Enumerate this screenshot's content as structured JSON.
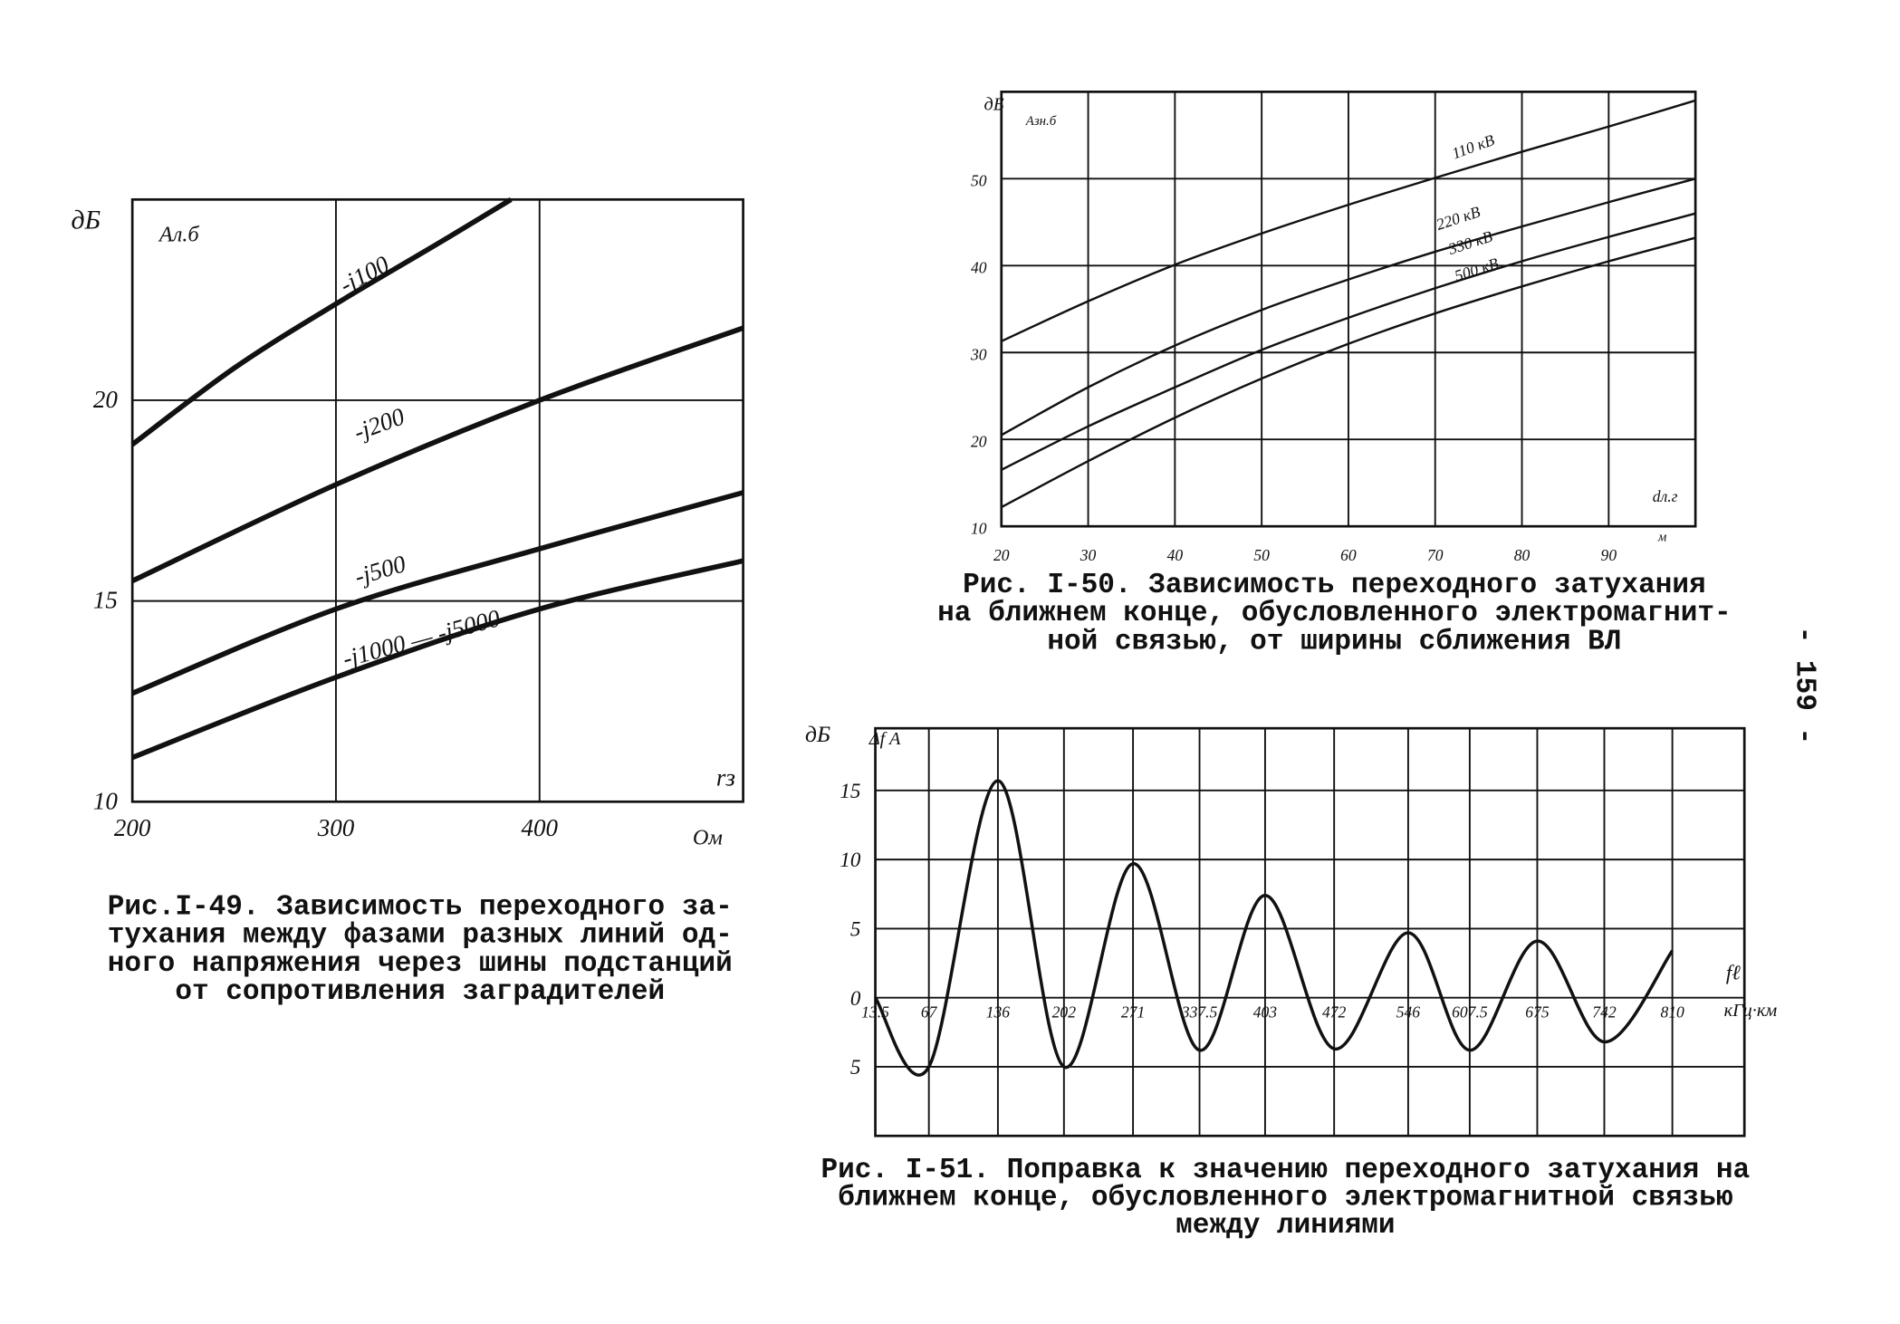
{
  "chart_data": [
    {
      "type": "line",
      "caption": [
        "Рис.I-49. Зависимость переходного за-",
        "тухания между фазами разных линий од-",
        "ного напряжения через шины подстанций",
        "от сопротивления заградителей"
      ],
      "ylabel": "дБ",
      "y_symbol": "Aл.б",
      "xlabel": "rз",
      "x_unit": "Ом",
      "xlim": [
        200,
        500
      ],
      "xticks": [
        200,
        300,
        400
      ],
      "ylim": [
        10,
        25
      ],
      "yticks": [
        10,
        15,
        20
      ],
      "grid": true,
      "series": [
        {
          "name": "-j100",
          "color": "#111",
          "x": [
            200,
            250,
            300,
            350,
            386
          ],
          "values": [
            18.9,
            20.8,
            22.4,
            23.9,
            25
          ]
        },
        {
          "name": "-j200",
          "color": "#111",
          "x": [
            200,
            300,
            400,
            500
          ],
          "values": [
            15.5,
            17.9,
            20.0,
            21.8
          ]
        },
        {
          "name": "-j500",
          "color": "#111",
          "x": [
            200,
            300,
            400,
            500
          ],
          "values": [
            12.7,
            14.8,
            16.3,
            17.7
          ]
        },
        {
          "name": "-j1000 — -j5000",
          "color": "#111",
          "x": [
            200,
            300,
            400,
            500
          ],
          "values": [
            11.1,
            13.1,
            14.8,
            16.0
          ]
        }
      ]
    },
    {
      "type": "line",
      "caption": [
        "Рис. I-50. Зависимость переходного затухания",
        "на ближнем конце, обусловленного электромагнит-",
        "ной связью, от ширины сближения ВЛ"
      ],
      "ylabel": "дБ",
      "y_symbol": "Aзн.б",
      "xlabel": "dл.г",
      "x_unit": "м",
      "xlim": [
        20,
        100
      ],
      "xticks": [
        20,
        30,
        40,
        50,
        60,
        70,
        80,
        90
      ],
      "ylim": [
        10,
        60
      ],
      "yticks": [
        10,
        20,
        30,
        40,
        50
      ],
      "grid": true,
      "series": [
        {
          "name": "110 кВ",
          "color": "#111",
          "x": [
            20,
            30,
            40,
            50,
            60,
            70,
            80,
            90,
            100
          ],
          "values": [
            31.3,
            35.9,
            40.1,
            43.7,
            47.0,
            50.1,
            53.1,
            56.0,
            59.0
          ]
        },
        {
          "name": "220 кВ",
          "color": "#111",
          "x": [
            20,
            30,
            40,
            50,
            60,
            70,
            80,
            90,
            100
          ],
          "values": [
            20.5,
            26,
            30.8,
            34.9,
            38.4,
            41.6,
            44.5,
            47.3,
            50.0
          ]
        },
        {
          "name": "330 кВ",
          "color": "#111",
          "x": [
            20,
            30,
            40,
            50,
            60,
            70,
            80,
            90,
            100
          ],
          "values": [
            16.5,
            21.5,
            26,
            30.3,
            34,
            37.4,
            40.5,
            43.3,
            46.0
          ]
        },
        {
          "name": "500 кВ",
          "color": "#111",
          "x": [
            20,
            30,
            40,
            50,
            60,
            70,
            80,
            90,
            100
          ],
          "values": [
            12.2,
            17.5,
            22.5,
            27,
            31,
            34.5,
            37.6,
            40.5,
            43.2
          ]
        }
      ]
    },
    {
      "type": "line",
      "caption": [
        "Рис. I-51. Поправка к значению переходного затухания на",
        "ближнем конце, обусловленного электромагнитной связью",
        "между линиями"
      ],
      "ylabel": "дБ",
      "y_symbol": "Δf A",
      "xlabel": "fℓ",
      "x_unit": "кГц·км",
      "xlim": [
        13.5,
        882
      ],
      "xticks": [
        13.5,
        67,
        136,
        202,
        271,
        337.5,
        403,
        472,
        546,
        607.5,
        675,
        742,
        810
      ],
      "ylim": [
        -10,
        19.5
      ],
      "yticks": [
        15,
        10,
        5,
        0,
        {
          "value": -5,
          "label": "5"
        }
      ],
      "grid": true,
      "series": [
        {
          "name": "ΔfA",
          "color": "#111",
          "x": [
            13.5,
            67,
            136,
            202,
            271,
            337.5,
            403,
            472,
            546,
            607.5,
            675,
            742,
            810
          ],
          "values": [
            0,
            -5,
            15.7,
            -5,
            9.7,
            -3.8,
            7.4,
            -3.7,
            4.7,
            -3.8,
            4.1,
            -3.2,
            3.4
          ]
        }
      ]
    }
  ],
  "page_number": "- 159 -"
}
